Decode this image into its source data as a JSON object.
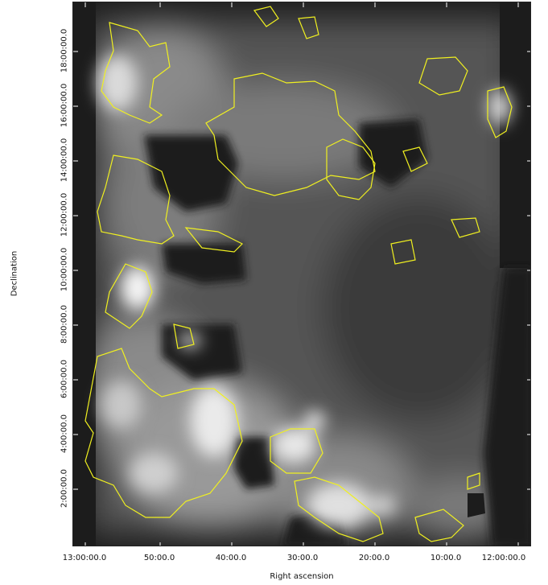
{
  "axes": {
    "xlabel": "Right ascension",
    "ylabel": "Declination",
    "x_ticks": [
      "13:00:00.0",
      "50:00.0",
      "40:00.0",
      "30:00.0",
      "20:00.0",
      "10:00.0",
      "12:00:00.0"
    ],
    "y_ticks": [
      "2:00:00.0",
      "4:00:00.0",
      "6:00:00.0",
      "8:00:00.0",
      "10:00:00.0",
      "12:00:00.0",
      "14:00:00.0",
      "16:00:00.0",
      "18:00:00.0"
    ]
  },
  "map": {
    "colormap": "grayscale",
    "background": "#1c1c1c",
    "contour_color": "#f0f020",
    "masked_color": "#1c1c1c"
  }
}
